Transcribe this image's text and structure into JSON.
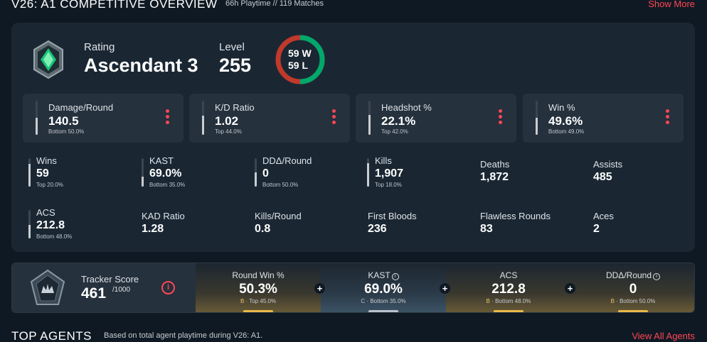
{
  "header": {
    "title": "V26: A1 COMPETITIVE OVERVIEW",
    "meta": "66h Playtime  // 119 Matches",
    "show_more": "Show More"
  },
  "rating": {
    "label": "Rating",
    "value": "Ascendant 3",
    "icon": "ascendant-rank-icon"
  },
  "level": {
    "label": "Level",
    "value": "255"
  },
  "record": {
    "wins": "59 W",
    "losses": "59 L",
    "win_color": "#00a86b",
    "loss_color": "#c0392b",
    "win_fraction": 0.5
  },
  "top_stats": [
    {
      "label": "Damage/Round",
      "value": "140.5",
      "percentile": "Bottom 50.0%",
      "fill": 0.5
    },
    {
      "label": "K/D Ratio",
      "value": "1.02",
      "percentile": "Top 44.0%",
      "fill": 0.56
    },
    {
      "label": "Headshot %",
      "value": "22.1%",
      "percentile": "Top 42.0%",
      "fill": 0.58
    },
    {
      "label": "Win %",
      "value": "49.6%",
      "percentile": "Bottom 49.0%",
      "fill": 0.49
    }
  ],
  "stats": [
    {
      "label": "Wins",
      "value": "59",
      "percentile": "Top 20.0%",
      "fill": 0.8
    },
    {
      "label": "KAST",
      "value": "69.0%",
      "percentile": "Bottom 35.0%",
      "fill": 0.35
    },
    {
      "label": "DDΔ/Round",
      "value": "0",
      "percentile": "Bottom 50.0%",
      "fill": 0.5
    },
    {
      "label": "Kills",
      "value": "1,907",
      "percentile": "Top 18.0%",
      "fill": 0.82
    },
    {
      "label": "Deaths",
      "value": "1,872"
    },
    {
      "label": "Assists",
      "value": "485"
    },
    {
      "label": "ACS",
      "value": "212.8",
      "percentile": "Bottom 48.0%",
      "fill": 0.48
    },
    {
      "label": "KAD Ratio",
      "value": "1.28"
    },
    {
      "label": "Kills/Round",
      "value": "0.8"
    },
    {
      "label": "First Bloods",
      "value": "236"
    },
    {
      "label": "Flawless Rounds",
      "value": "83"
    },
    {
      "label": "Aces",
      "value": "2"
    }
  ],
  "tracker": {
    "label": "Tracker Score",
    "value": "461",
    "max": "/1000",
    "info": "i",
    "metrics": [
      {
        "label": "Round Win %",
        "value": "50.3%",
        "grade": "B",
        "sub": " · Top 45.0%",
        "info": false
      },
      {
        "label": "KAST",
        "value": "69.0%",
        "grade": "C",
        "sub": " · Bottom 35.0%",
        "info": true
      },
      {
        "label": "ACS",
        "value": "212.8",
        "grade": "B",
        "sub": " · Bottom 48.0%",
        "info": false
      },
      {
        "label": "DDΔ/Round",
        "value": "0",
        "grade": "B",
        "sub": " · Bottom 50.0%",
        "info": true
      }
    ],
    "plus": "+"
  },
  "footer": {
    "title": "TOP AGENTS",
    "meta": "Based on total agent playtime during V26: A1.",
    "view_all": "View All Agents"
  }
}
